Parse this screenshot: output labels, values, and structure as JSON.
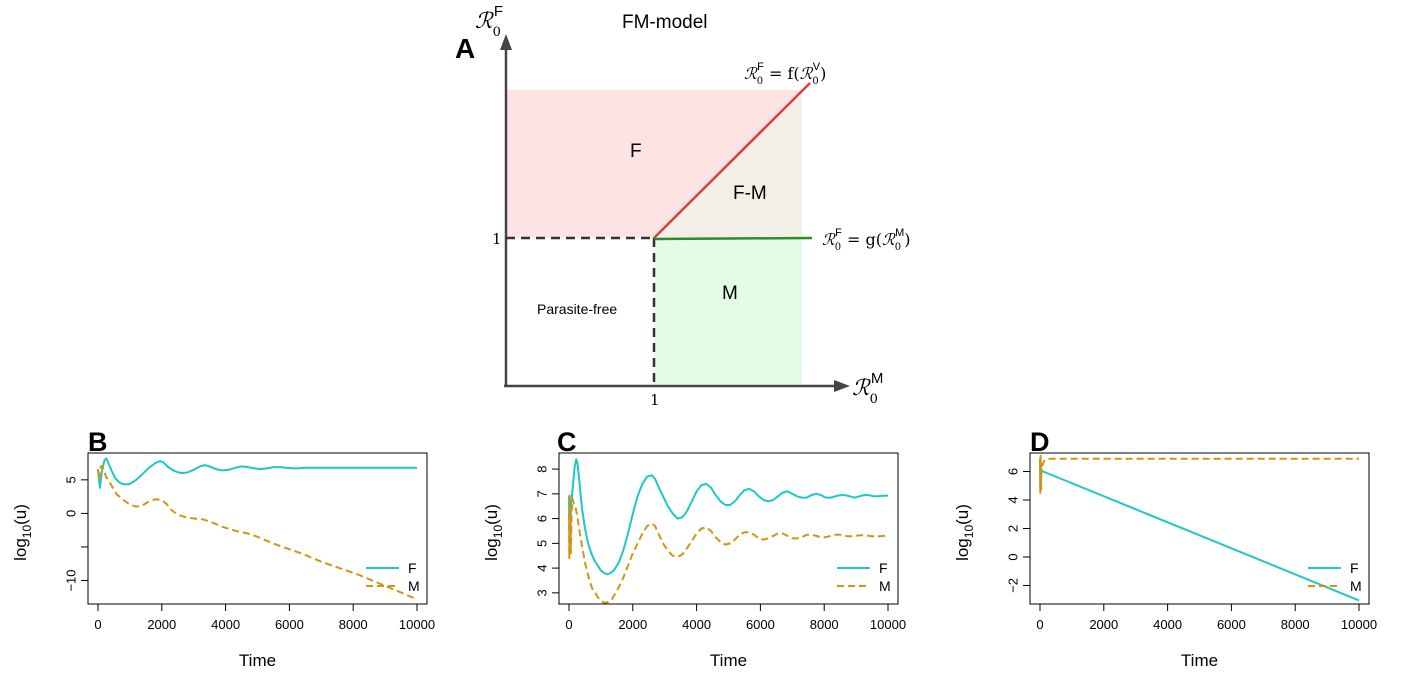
{
  "panel_a": {
    "panel_label": "A",
    "title": "FM-model",
    "y_axis_symbol": "ℛ",
    "y_axis_sub": "0",
    "y_axis_sup": "F",
    "x_axis_symbol": "ℛ",
    "x_axis_sub": "0",
    "x_axis_sup": "M",
    "tick_x": "1",
    "tick_y": "1",
    "region_labels": {
      "f": "F",
      "fm": "F-M",
      "m": "M",
      "free": "Parasite-free"
    },
    "upper_curve_label": {
      "lhs_sup": "F",
      "func": "f",
      "arg_sup": "V"
    },
    "lower_curve_label": {
      "lhs_sup": "F",
      "func": "g",
      "arg_sup": "M"
    },
    "colors": {
      "f_region": "#fde3e3",
      "fm_region": "#f1efe6",
      "m_region": "#e4fbe4",
      "upper_curve": "#d94040",
      "lower_curve": "#2e8b2e",
      "threshold": "#333333"
    }
  },
  "chart_data": [
    {
      "panel": "B",
      "type": "line",
      "xlabel": "Time",
      "ylabel_base": "log",
      "ylabel_sub": "10",
      "ylabel_arg": "(u)",
      "xlim": [
        0,
        10000
      ],
      "ylim": [
        -13.5,
        9
      ],
      "x_ticks": [
        0,
        2000,
        4000,
        6000,
        8000,
        10000
      ],
      "y_ticks": [
        -10,
        -5,
        0,
        5
      ],
      "y_tick_labels": [
        "−10",
        "",
        "0",
        "5"
      ],
      "legend": {
        "position": "bottom-right",
        "entries": [
          "F",
          "M"
        ]
      },
      "series": [
        {
          "name": "F",
          "color": "#1fc8c8",
          "dash": "solid",
          "x": [
            0,
            60,
            120,
            200,
            260,
            330,
            420,
            550,
            700,
            850,
            1000,
            1200,
            1400,
            1600,
            1800,
            1950,
            2050,
            2200,
            2400,
            2600,
            2800,
            3000,
            3200,
            3350,
            3500,
            3700,
            3900,
            4100,
            4300,
            4500,
            4700,
            4900,
            5100,
            5300,
            5500,
            5700,
            5900,
            6200,
            6500,
            6800,
            7100,
            7500,
            8000,
            8500,
            9000,
            9500,
            10000
          ],
          "y": [
            6.5,
            3.8,
            6.2,
            7.9,
            8.2,
            7.5,
            6.4,
            5.2,
            4.5,
            4.3,
            4.4,
            5.0,
            5.9,
            6.8,
            7.5,
            7.8,
            7.6,
            6.9,
            6.3,
            6.0,
            6.1,
            6.5,
            7.0,
            7.2,
            7.0,
            6.6,
            6.4,
            6.5,
            6.8,
            7.0,
            6.9,
            6.7,
            6.6,
            6.7,
            6.9,
            6.9,
            6.8,
            6.7,
            6.8,
            6.8,
            6.8,
            6.8,
            6.8,
            6.8,
            6.8,
            6.8,
            6.8
          ]
        },
        {
          "name": "M",
          "color": "#d4940f",
          "dash": "dashed",
          "x": [
            0,
            40,
            80,
            130,
            180,
            260,
            350,
            450,
            600,
            800,
            1000,
            1200,
            1400,
            1600,
            1800,
            2000,
            2150,
            2300,
            2500,
            2700,
            2900,
            3100,
            3300,
            3500,
            3700,
            3900,
            4100,
            4300,
            4500,
            4700,
            4900,
            5100,
            5300,
            5500,
            5800,
            6100,
            6400,
            6700,
            7000,
            7300,
            7600,
            7900,
            8200,
            8500,
            8800,
            9100,
            9400,
            9700,
            10000
          ],
          "y": [
            6.6,
            5.0,
            6.9,
            7.1,
            6.4,
            5.4,
            4.8,
            3.9,
            2.8,
            2.0,
            1.3,
            1.0,
            1.2,
            1.8,
            2.1,
            2.0,
            1.4,
            0.5,
            -0.2,
            -0.5,
            -0.7,
            -0.8,
            -0.9,
            -1.2,
            -1.6,
            -2.0,
            -2.3,
            -2.6,
            -2.8,
            -3.0,
            -3.3,
            -3.7,
            -4.1,
            -4.5,
            -5.0,
            -5.5,
            -6.0,
            -6.6,
            -7.2,
            -7.7,
            -8.2,
            -8.7,
            -9.2,
            -9.8,
            -10.4,
            -11.0,
            -11.6,
            -12.2,
            -12.8
          ]
        }
      ]
    },
    {
      "panel": "C",
      "type": "line",
      "xlabel": "Time",
      "ylabel_base": "log",
      "ylabel_sub": "10",
      "ylabel_arg": "(u)",
      "xlim": [
        0,
        10000
      ],
      "ylim": [
        2.55,
        8.65
      ],
      "x_ticks": [
        0,
        2000,
        4000,
        6000,
        8000,
        10000
      ],
      "y_ticks": [
        3,
        4,
        5,
        6,
        7,
        8
      ],
      "y_tick_labels": [
        "3",
        "4",
        "5",
        "6",
        "7",
        "8"
      ],
      "legend": {
        "position": "bottom-right",
        "entries": [
          "F",
          "M"
        ]
      },
      "series": [
        {
          "name": "F",
          "color": "#1fc8c8",
          "dash": "solid",
          "x": [
            0,
            15,
            30,
            45,
            60,
            90,
            130,
            180,
            230,
            270,
            310,
            360,
            420,
            500,
            600,
            700,
            800,
            900,
            1000,
            1100,
            1200,
            1300,
            1400,
            1550,
            1700,
            1850,
            2000,
            2150,
            2300,
            2450,
            2600,
            2700,
            2800,
            2950,
            3100,
            3250,
            3400,
            3550,
            3700,
            3850,
            4000,
            4150,
            4300,
            4450,
            4600,
            4750,
            4900,
            5050,
            5200,
            5350,
            5500,
            5650,
            5800,
            5950,
            6100,
            6250,
            6400,
            6550,
            6700,
            6850,
            7000,
            7150,
            7300,
            7450,
            7600,
            7750,
            7900,
            8050,
            8200,
            8350,
            8500,
            8650,
            8800,
            8950,
            9100,
            9250,
            9400,
            9550,
            9700,
            9850,
            10000
          ],
          "y": [
            6.9,
            5.0,
            6.6,
            4.9,
            6.6,
            6.9,
            7.4,
            8.1,
            8.4,
            8.2,
            7.7,
            7.0,
            6.3,
            5.6,
            5.0,
            4.6,
            4.3,
            4.1,
            3.9,
            3.8,
            3.75,
            3.8,
            3.9,
            4.2,
            4.7,
            5.4,
            6.2,
            6.9,
            7.4,
            7.7,
            7.75,
            7.6,
            7.3,
            6.9,
            6.5,
            6.2,
            6.0,
            6.05,
            6.3,
            6.7,
            7.1,
            7.35,
            7.4,
            7.25,
            6.95,
            6.7,
            6.55,
            6.55,
            6.7,
            6.95,
            7.15,
            7.2,
            7.1,
            6.9,
            6.75,
            6.7,
            6.75,
            6.9,
            7.05,
            7.1,
            7.0,
            6.9,
            6.85,
            6.85,
            6.95,
            7.0,
            6.95,
            6.85,
            6.85,
            6.9,
            6.95,
            6.95,
            6.9,
            6.85,
            6.9,
            6.95,
            6.95,
            6.9,
            6.9,
            6.92,
            6.93
          ]
        },
        {
          "name": "M",
          "color": "#d4940f",
          "dash": "dashed",
          "x": [
            0,
            10,
            20,
            30,
            45,
            60,
            80,
            110,
            150,
            200,
            260,
            330,
            420,
            520,
            620,
            720,
            820,
            920,
            1020,
            1120,
            1220,
            1320,
            1420,
            1550,
            1700,
            1850,
            2000,
            2150,
            2300,
            2450,
            2600,
            2700,
            2800,
            2950,
            3100,
            3250,
            3400,
            3550,
            3700,
            3850,
            4000,
            4150,
            4300,
            4450,
            4600,
            4750,
            4900,
            5050,
            5200,
            5350,
            5500,
            5650,
            5800,
            5950,
            6100,
            6250,
            6400,
            6550,
            6700,
            6850,
            7000,
            7150,
            7300,
            7450,
            7600,
            7750,
            7900,
            8050,
            8200,
            8350,
            8500,
            8650,
            8800,
            8950,
            9100,
            9250,
            9400,
            9550,
            9700,
            9850,
            10000
          ],
          "y": [
            6.2,
            4.4,
            7.0,
            4.7,
            6.0,
            4.6,
            6.3,
            6.8,
            6.6,
            6.5,
            6.1,
            5.5,
            4.8,
            4.1,
            3.6,
            3.2,
            3.0,
            2.8,
            2.65,
            2.6,
            2.62,
            2.7,
            2.9,
            3.2,
            3.6,
            4.1,
            4.6,
            5.0,
            5.4,
            5.7,
            5.8,
            5.7,
            5.4,
            5.0,
            4.7,
            4.5,
            4.45,
            4.55,
            4.8,
            5.1,
            5.4,
            5.6,
            5.65,
            5.5,
            5.25,
            5.05,
            4.95,
            5.0,
            5.15,
            5.35,
            5.45,
            5.45,
            5.35,
            5.2,
            5.15,
            5.2,
            5.3,
            5.4,
            5.4,
            5.3,
            5.2,
            5.2,
            5.25,
            5.35,
            5.35,
            5.3,
            5.25,
            5.25,
            5.3,
            5.35,
            5.35,
            5.3,
            5.28,
            5.3,
            5.32,
            5.33,
            5.3,
            5.28,
            5.28,
            5.3,
            5.3
          ]
        }
      ]
    },
    {
      "panel": "D",
      "type": "line",
      "xlabel": "Time",
      "ylabel_base": "log",
      "ylabel_sub": "10",
      "ylabel_arg": "(u)",
      "xlim": [
        0,
        10000
      ],
      "ylim": [
        -3.3,
        7.3
      ],
      "x_ticks": [
        0,
        2000,
        4000,
        6000,
        8000,
        10000
      ],
      "y_ticks": [
        -2,
        0,
        2,
        4,
        6
      ],
      "y_tick_labels": [
        "−2",
        "0",
        "2",
        "4",
        "6"
      ],
      "legend": {
        "position": "bottom-right",
        "entries": [
          "F",
          "M"
        ]
      },
      "series": [
        {
          "name": "F",
          "color": "#1fc8c8",
          "dash": "solid",
          "x": [
            0,
            10,
            20,
            30,
            40,
            60,
            100,
            10000
          ],
          "y": [
            6.9,
            4.8,
            6.8,
            5.0,
            6.2,
            6.0,
            6.0,
            -3.05
          ]
        },
        {
          "name": "M",
          "color": "#d4940f",
          "dash": "dashed",
          "x": [
            0,
            10,
            20,
            30,
            45,
            70,
            120,
            200,
            350,
            600,
            1000,
            10000
          ],
          "y": [
            6.9,
            4.5,
            7.1,
            4.6,
            6.1,
            6.4,
            6.7,
            6.85,
            6.9,
            6.9,
            6.9,
            6.9
          ]
        }
      ]
    }
  ],
  "panel_letters": [
    "B",
    "C",
    "D"
  ]
}
